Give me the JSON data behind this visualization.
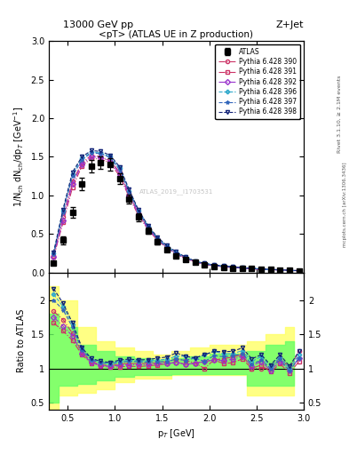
{
  "title_top": "13000 GeV pp",
  "title_right": "Z+Jet",
  "plot_title": "<pT> (ATLAS UE in Z production)",
  "ylabel_main": "1/N$_{ch}$ dN$_{ch}$/dp$_T$ [GeV$^{-1}$]",
  "ylabel_ratio": "Ratio to ATLAS",
  "xlabel": "p$_T$ [GeV]",
  "watermark": "ATLAS_2019__I1703531",
  "rivet_label": "Rivet 3.1.10, ≥ 2.1M events",
  "mcplots_label": "mcplots.cern.ch [arXiv:1306.3436]",
  "ylim_main": [
    0,
    3
  ],
  "ylim_ratio": [
    0.4,
    2.4
  ],
  "xlim": [
    0.3,
    3.0
  ],
  "legend_entries": [
    {
      "label": "ATLAS",
      "color": "#000000",
      "marker": "s",
      "filled": true
    },
    {
      "label": "Pythia 6.428 390",
      "color": "#cc0044",
      "marker": "o",
      "linestyle": "-."
    },
    {
      "label": "Pythia 6.428 391",
      "color": "#cc0044",
      "marker": "s",
      "linestyle": "-."
    },
    {
      "label": "Pythia 6.428 392",
      "color": "#8800cc",
      "marker": "D",
      "linestyle": "-."
    },
    {
      "label": "Pythia 6.428 396",
      "color": "#0088cc",
      "marker": "*",
      "linestyle": "--"
    },
    {
      "label": "Pythia 6.428 397",
      "color": "#0044aa",
      "marker": "*",
      "linestyle": "--"
    },
    {
      "label": "Pythia 6.428 398",
      "color": "#000088",
      "marker": "v",
      "linestyle": "--"
    }
  ],
  "atlas_x": [
    0.35,
    0.45,
    0.55,
    0.65,
    0.75,
    0.85,
    0.95,
    1.05,
    1.15,
    1.25,
    1.35,
    1.45,
    1.55,
    1.65,
    1.75,
    1.85,
    1.95,
    2.05,
    2.15,
    2.25,
    2.35,
    2.45,
    2.55,
    2.65,
    2.75,
    2.85,
    2.95
  ],
  "atlas_y": [
    0.12,
    0.42,
    0.78,
    1.15,
    1.38,
    1.42,
    1.4,
    1.22,
    0.95,
    0.72,
    0.54,
    0.4,
    0.3,
    0.22,
    0.17,
    0.13,
    0.1,
    0.08,
    0.07,
    0.06,
    0.05,
    0.05,
    0.04,
    0.04,
    0.03,
    0.03,
    0.02
  ],
  "atlas_yerr": [
    0.02,
    0.05,
    0.07,
    0.08,
    0.08,
    0.08,
    0.08,
    0.07,
    0.06,
    0.05,
    0.04,
    0.03,
    0.02,
    0.02,
    0.015,
    0.012,
    0.01,
    0.008,
    0.007,
    0.006,
    0.005,
    0.005,
    0.004,
    0.004,
    0.003,
    0.003,
    0.002
  ],
  "mc_x": [
    0.35,
    0.45,
    0.55,
    0.65,
    0.75,
    0.85,
    0.95,
    1.05,
    1.15,
    1.25,
    1.35,
    1.45,
    1.55,
    1.65,
    1.75,
    1.85,
    1.95,
    2.05,
    2.15,
    2.25,
    2.35,
    2.45,
    2.55,
    2.65,
    2.75,
    2.85,
    2.95
  ],
  "mc390_y": [
    0.22,
    0.72,
    1.18,
    1.42,
    1.52,
    1.5,
    1.45,
    1.3,
    1.02,
    0.77,
    0.58,
    0.43,
    0.33,
    0.25,
    0.19,
    0.14,
    0.11,
    0.09,
    0.08,
    0.07,
    0.06,
    0.05,
    0.04,
    0.04,
    0.035,
    0.03,
    0.025
  ],
  "mc391_y": [
    0.2,
    0.65,
    1.1,
    1.38,
    1.48,
    1.47,
    1.42,
    1.25,
    0.98,
    0.74,
    0.56,
    0.42,
    0.32,
    0.24,
    0.18,
    0.14,
    0.1,
    0.09,
    0.075,
    0.065,
    0.057,
    0.05,
    0.042,
    0.038,
    0.032,
    0.028,
    0.022
  ],
  "mc392_y": [
    0.21,
    0.68,
    1.15,
    1.4,
    1.5,
    1.49,
    1.44,
    1.28,
    1.0,
    0.76,
    0.57,
    0.43,
    0.32,
    0.24,
    0.18,
    0.14,
    0.11,
    0.09,
    0.078,
    0.068,
    0.059,
    0.052,
    0.044,
    0.039,
    0.033,
    0.029,
    0.023
  ],
  "mc396_y": [
    0.25,
    0.8,
    1.28,
    1.48,
    1.56,
    1.55,
    1.5,
    1.35,
    1.06,
    0.8,
    0.6,
    0.45,
    0.34,
    0.26,
    0.2,
    0.15,
    0.12,
    0.1,
    0.085,
    0.073,
    0.063,
    0.055,
    0.047,
    0.041,
    0.035,
    0.03,
    0.024
  ],
  "mc397_y": [
    0.24,
    0.78,
    1.25,
    1.46,
    1.55,
    1.54,
    1.49,
    1.33,
    1.05,
    0.79,
    0.59,
    0.44,
    0.33,
    0.25,
    0.19,
    0.15,
    0.11,
    0.095,
    0.082,
    0.071,
    0.061,
    0.053,
    0.045,
    0.04,
    0.034,
    0.029,
    0.023
  ],
  "mc398_y": [
    0.26,
    0.82,
    1.3,
    1.5,
    1.58,
    1.57,
    1.52,
    1.37,
    1.08,
    0.81,
    0.61,
    0.46,
    0.35,
    0.27,
    0.2,
    0.15,
    0.12,
    0.1,
    0.087,
    0.075,
    0.065,
    0.057,
    0.048,
    0.042,
    0.036,
    0.031,
    0.025
  ],
  "yellow_band_x": [
    0.3,
    0.5,
    0.7,
    0.9,
    1.1,
    1.3,
    1.5,
    1.7,
    1.9,
    2.1,
    2.3,
    2.5,
    2.7,
    2.9
  ],
  "yellow_band_lo": [
    0.4,
    0.6,
    0.65,
    0.7,
    0.8,
    0.85,
    0.85,
    0.9,
    0.9,
    0.9,
    0.9,
    0.6,
    0.6,
    0.6
  ],
  "yellow_band_hi": [
    2.2,
    2.0,
    1.6,
    1.4,
    1.3,
    1.25,
    1.2,
    1.25,
    1.3,
    1.35,
    1.35,
    1.4,
    1.5,
    1.6
  ],
  "green_band_lo": [
    0.5,
    0.75,
    0.78,
    0.82,
    0.88,
    0.9,
    0.9,
    0.92,
    0.92,
    0.92,
    0.92,
    0.75,
    0.75,
    0.75
  ],
  "green_band_hi": [
    1.8,
    1.6,
    1.35,
    1.25,
    1.18,
    1.15,
    1.12,
    1.15,
    1.18,
    1.22,
    1.22,
    1.25,
    1.35,
    1.4
  ]
}
